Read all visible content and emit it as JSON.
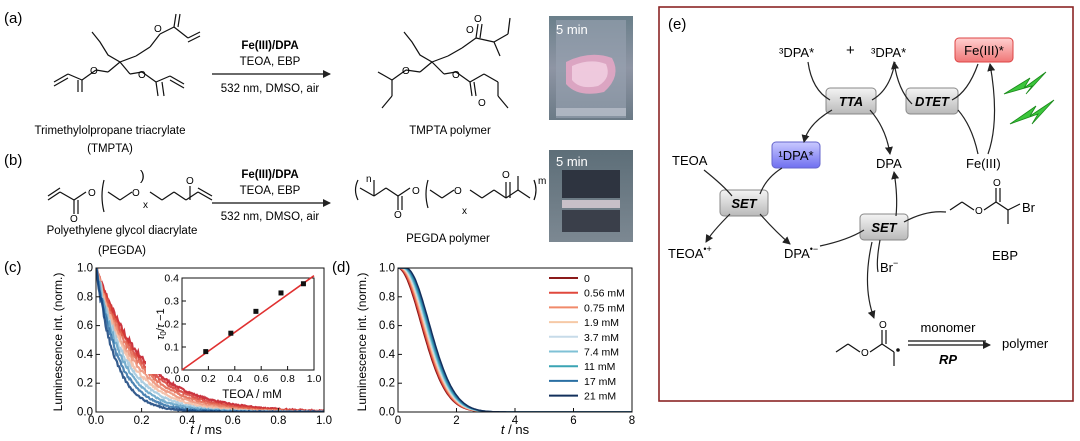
{
  "panel_a": {
    "label": "(a)",
    "reactant_name": "Trimethylolpropane triacrylate",
    "reactant_abbr": "(TMPTA)",
    "catalyst": "Fe(III)/DPA",
    "reagents": "TEOA, EBP",
    "conditions": "532 nm, DMSO, air",
    "product_name": "TMPTA polymer",
    "photo_time": "5 min"
  },
  "panel_b": {
    "label": "(b)",
    "reactant_name": "Polyethylene glycol diacrylate",
    "reactant_abbr": "(PEGDA)",
    "catalyst": "Fe(III)/DPA",
    "reagents": "TEOA, EBP",
    "conditions": "532 nm, DMSO, air",
    "product_name": "PEGDA polymer",
    "photo_time": "5 min",
    "sub_x": "x",
    "sub_n": "n",
    "sub_m": "m"
  },
  "panel_c": {
    "label": "(c)",
    "ylabel": "Luminescence int. (norm.)",
    "xlabel_var": "t",
    "xlabel_unit": " / ms"
  },
  "panel_d": {
    "label": "(d)",
    "ylabel": "Luminescence int. (norm.)",
    "xlabel_var": "t",
    "xlabel_unit": " / ns"
  },
  "panel_e": {
    "label": "(e)",
    "tdpa_left": "³DPA*",
    "plus": "+",
    "tdpa_right": "³DPA*",
    "fe_excited": "Fe(III)*",
    "tta": "TTA",
    "dtet": "DTET",
    "sdpa": "¹DPA*",
    "teoa": "TEOA",
    "dpa": "DPA",
    "fe": "Fe(III)",
    "set_left": "SET",
    "set_right": "SET",
    "ebp": "EBP",
    "teoa_radical": "TEOA•+",
    "dpa_radical": "DPA•−",
    "bromide": "Br−",
    "br": "Br",
    "monomer": "monomer",
    "rp": "RP",
    "polymer": "polymer"
  },
  "chart_data": [
    {
      "type": "line",
      "panel": "c",
      "xlabel": "t / ms",
      "ylabel": "Luminescence int. (norm.)",
      "xlim": [
        0,
        1.0
      ],
      "ylim": [
        0,
        1.0
      ],
      "xticks": [
        0.0,
        0.2,
        0.4,
        0.6,
        0.8,
        1.0
      ],
      "yticks": [
        0.0,
        0.2,
        0.4,
        0.6,
        0.8,
        1.0
      ],
      "series": [
        {
          "tau": 0.205,
          "color": "#c1121f"
        },
        {
          "tau": 0.19,
          "color": "#d63a32"
        },
        {
          "tau": 0.175,
          "color": "#e2624a"
        },
        {
          "tau": 0.16,
          "color": "#ec8d72"
        },
        {
          "tau": 0.145,
          "color": "#f2b89f"
        },
        {
          "tau": 0.13,
          "color": "#9ec6dc"
        },
        {
          "tau": 0.115,
          "color": "#5c9ec4"
        },
        {
          "tau": 0.1,
          "color": "#2f6fa6"
        },
        {
          "tau": 0.085,
          "color": "#123f7a"
        }
      ]
    },
    {
      "type": "scatter",
      "panel": "c-inset",
      "xlabel": "TEOA / mM",
      "ylabel": "τ0/τ −1",
      "xlim": [
        0,
        1.0
      ],
      "ylim": [
        0,
        0.4
      ],
      "xticks": [
        0.0,
        0.2,
        0.4,
        0.6,
        0.8,
        1.0
      ],
      "yticks": [
        0.0,
        0.1,
        0.2,
        0.3,
        0.4
      ],
      "x": [
        0.18,
        0.37,
        0.56,
        0.75,
        0.92
      ],
      "y": [
        0.08,
        0.16,
        0.255,
        0.335,
        0.375
      ],
      "fit": {
        "slope": 0.41,
        "intercept": 0.0
      }
    },
    {
      "type": "line",
      "panel": "d",
      "xlabel": "t / ns",
      "ylabel": "Luminescence int. (norm.)",
      "xlim": [
        0,
        8
      ],
      "ylim": [
        0,
        1.0
      ],
      "xticks": [
        0,
        2,
        4,
        6,
        8
      ],
      "yticks": [
        0.0,
        0.2,
        0.4,
        0.6,
        0.8,
        1.0
      ],
      "series": [
        {
          "name": "0",
          "color": "#8b1a1a"
        },
        {
          "name": "0.56 mM",
          "color": "#e0483d"
        },
        {
          "name": "0.75 mM",
          "color": "#f08a6a"
        },
        {
          "name": "1.9 mM",
          "color": "#f6c9a6"
        },
        {
          "name": "3.7 mM",
          "color": "#c7dbe9"
        },
        {
          "name": "7.4 mM",
          "color": "#7fc1d6"
        },
        {
          "name": "11 mM",
          "color": "#3aa4b4"
        },
        {
          "name": "17 mM",
          "color": "#2a6fa3"
        },
        {
          "name": "21 mM",
          "color": "#13305c"
        }
      ]
    }
  ]
}
